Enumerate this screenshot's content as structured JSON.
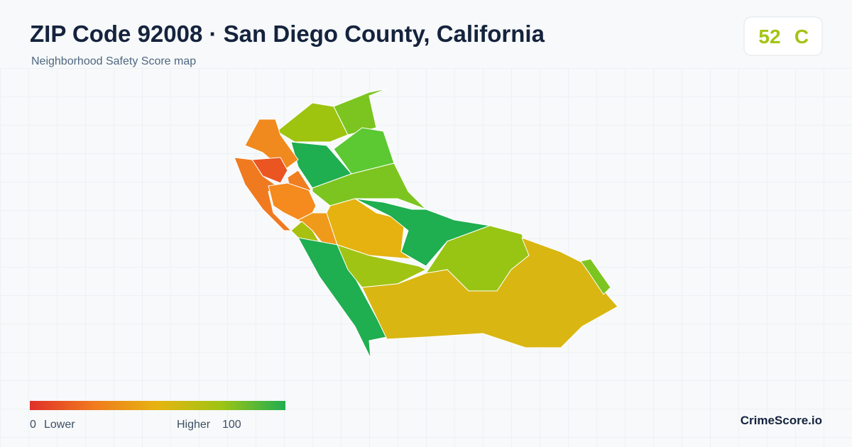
{
  "header": {
    "title": "ZIP Code 92008 · San Diego County, California",
    "subtitle": "Neighborhood Safety Score map"
  },
  "score": {
    "value": 52,
    "grade": "C"
  },
  "legend": {
    "min": 0,
    "min_label": "Lower",
    "max_label": "Higher",
    "max": 100
  },
  "brand": "CrimeScore.io"
}
